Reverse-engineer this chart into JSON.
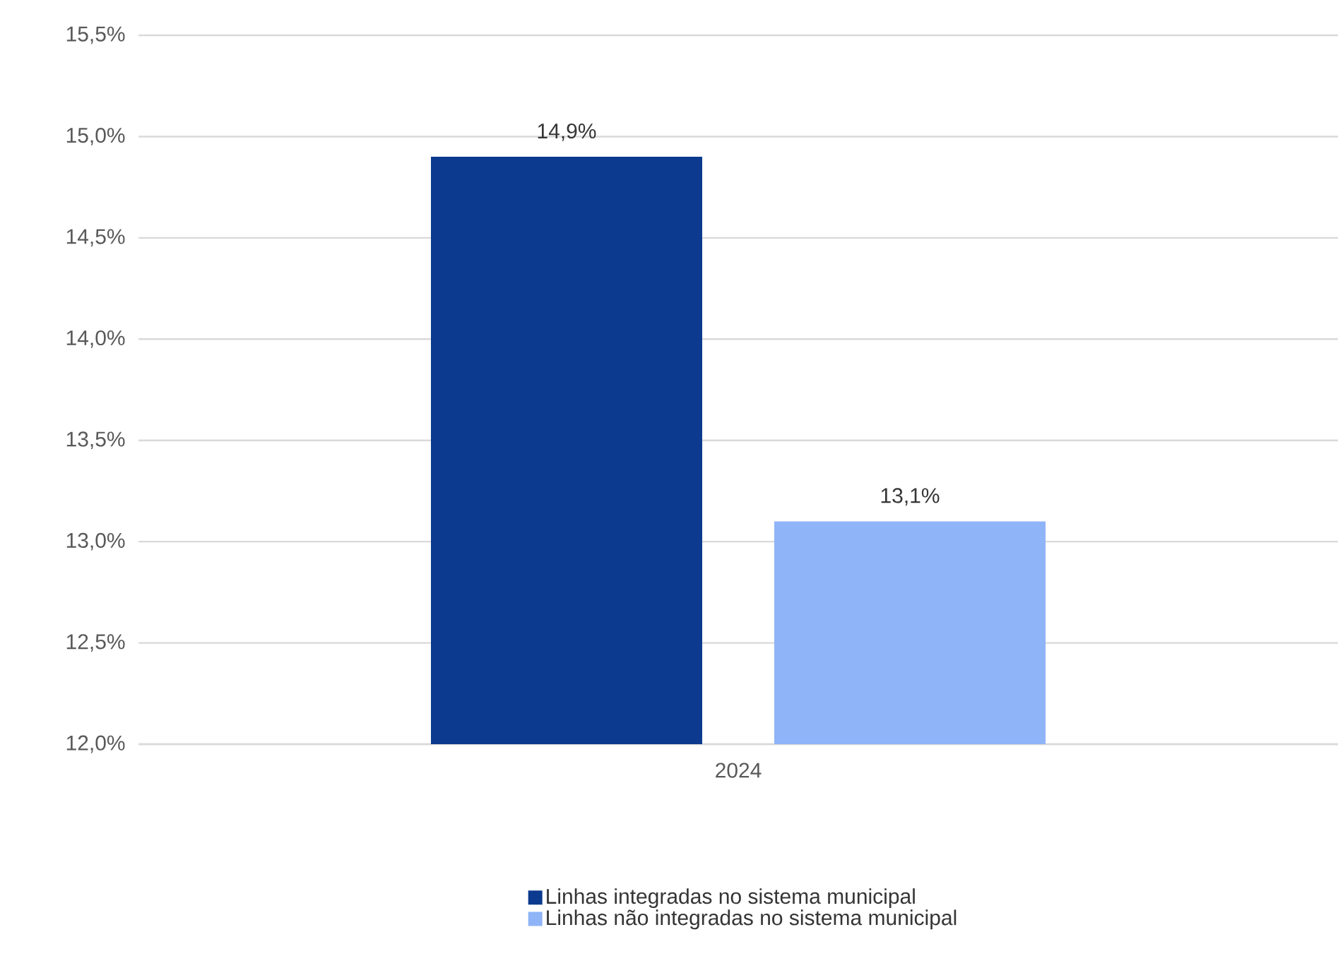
{
  "chart_data": {
    "type": "bar",
    "categories": [
      "2024"
    ],
    "series": [
      {
        "name": "Linhas integradas no sistema municipal",
        "color": "#0b3a8f",
        "values": [
          14.9
        ],
        "value_labels": [
          "14,9%"
        ]
      },
      {
        "name": "Linhas não integradas no sistema municipal",
        "color": "#8fb4f7",
        "values": [
          13.1
        ],
        "value_labels": [
          "13,1%"
        ]
      }
    ],
    "ylim": [
      12,
      15.5
    ],
    "yticks": [
      {
        "value": 12,
        "label": "12,0%"
      },
      {
        "value": 12.5,
        "label": "12,5%"
      },
      {
        "value": 13,
        "label": "13,0%"
      },
      {
        "value": 13.5,
        "label": "13,5%"
      },
      {
        "value": 14,
        "label": "14,0%"
      },
      {
        "value": 14.5,
        "label": "14,5%"
      },
      {
        "value": 15,
        "label": "15,0%"
      },
      {
        "value": 15.5,
        "label": "15,5%"
      }
    ],
    "grid": "y",
    "legend": "bottom"
  }
}
